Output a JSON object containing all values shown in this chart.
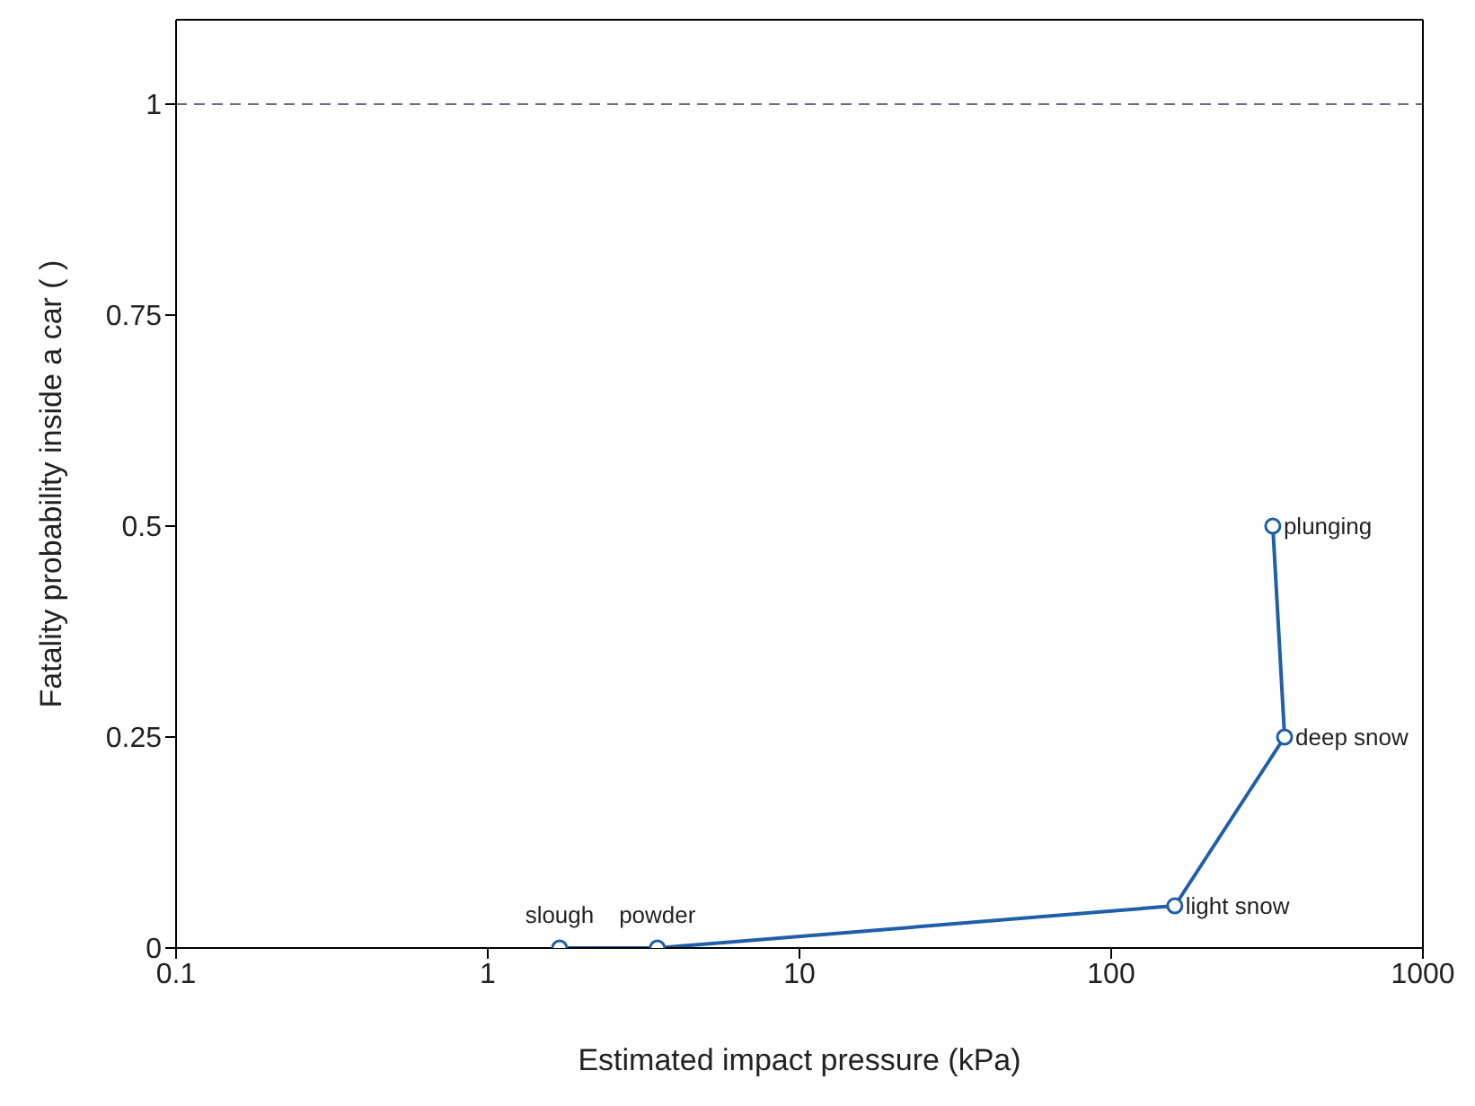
{
  "chart_data": {
    "type": "line",
    "xlabel": "Estimated impact pressure (kPa)",
    "ylabel": "Fatality probability inside a car ( )",
    "x": [
      1.7,
      3.5,
      160,
      360,
      330
    ],
    "series": [
      {
        "color": "#1f5fa8",
        "values": [
          0,
          0,
          0.05,
          0.25,
          0.5
        ]
      }
    ],
    "log": "x",
    "xlim": [
      0.1,
      1000
    ],
    "xticks": [
      0.1,
      1,
      10,
      100,
      1000
    ],
    "ylim": [
      0,
      1.1
    ],
    "yticks": [
      0,
      0.25,
      0.5,
      0.75,
      1
    ],
    "marker": "circle",
    "line_style": "solid",
    "grid": false,
    "legend": false,
    "ref_lines": [
      {
        "axis": "y",
        "value": 1,
        "color": "#6a6a8a",
        "line_style": "dashed"
      }
    ],
    "annotations": [
      {
        "text": "slough",
        "x": 1.7,
        "y": 0
      },
      {
        "text": "powder",
        "x": 3.5,
        "y": 0
      },
      {
        "text": "light snow",
        "x": 160,
        "y": 0.05
      },
      {
        "text": "deep snow",
        "x": 360,
        "y": 0.25
      },
      {
        "text": "plunging",
        "x": 330,
        "y": 0.5
      }
    ]
  }
}
